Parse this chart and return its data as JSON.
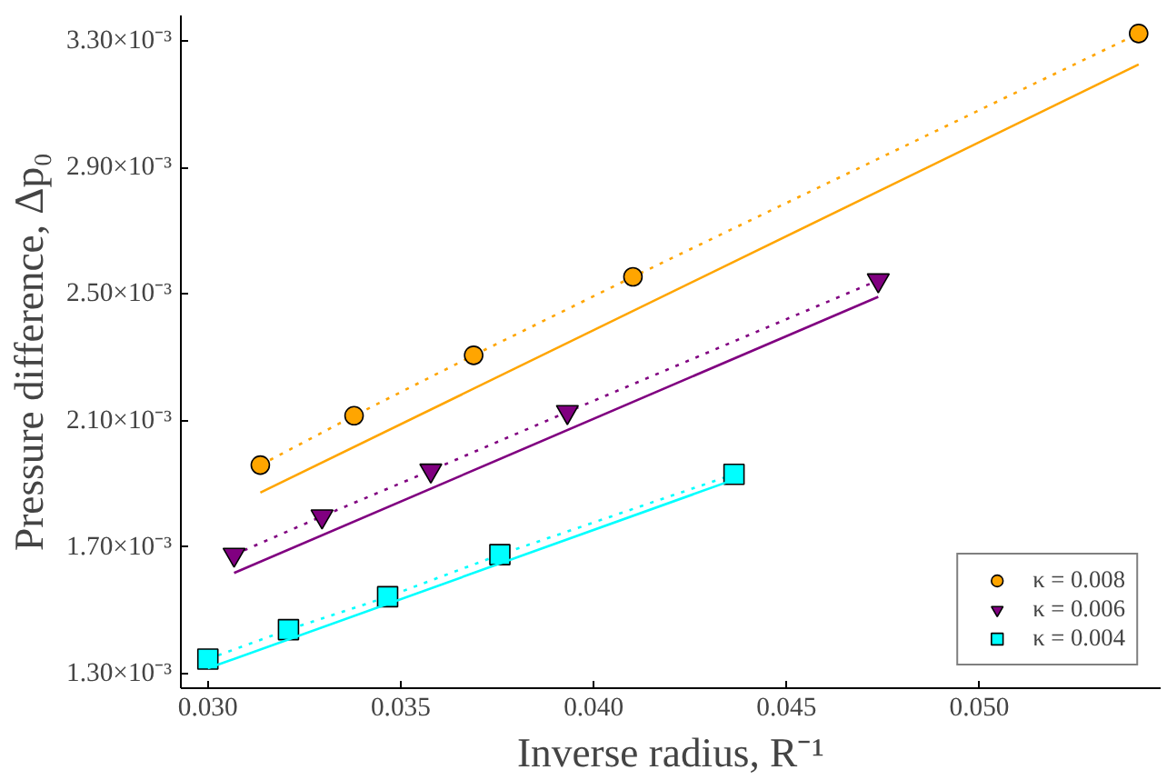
{
  "chart_data": {
    "type": "line",
    "xlabel": "Inverse radius, R⁻¹",
    "ylabel": "Pressure difference, Δp₀",
    "xlim": [
      0.0293,
      0.0547
    ],
    "ylim": [
      0.001254,
      0.00338
    ],
    "xticks": [
      {
        "value": 0.03,
        "label": "0.030"
      },
      {
        "value": 0.035,
        "label": "0.035"
      },
      {
        "value": 0.04,
        "label": "0.040"
      },
      {
        "value": 0.045,
        "label": "0.045"
      },
      {
        "value": 0.05,
        "label": "0.050"
      }
    ],
    "yticks": [
      {
        "value": 0.0013,
        "label": "1.30×10⁻³"
      },
      {
        "value": 0.0017,
        "label": "1.70×10⁻³"
      },
      {
        "value": 0.0021,
        "label": "2.10×10⁻³"
      },
      {
        "value": 0.0025,
        "label": "2.50×10⁻³"
      },
      {
        "value": 0.0029,
        "label": "2.90×10⁻³"
      },
      {
        "value": 0.0033,
        "label": "3.30×10⁻³"
      }
    ],
    "grid": false,
    "legend": "bottom right",
    "series": [
      {
        "name": "κ = 0.008",
        "color": "#ffa500",
        "marker": "circle",
        "line_style": "dotted",
        "x": [
          0.03136,
          0.03379,
          0.03689,
          0.04102,
          0.05413
        ],
        "values": [
          0.001959,
          0.002115,
          0.002306,
          0.002554,
          0.003323
        ]
      },
      {
        "name": "κ = 0.006",
        "color": "#800080",
        "marker": "triangle_down",
        "line_style": "dotted",
        "x": [
          0.03068,
          0.03296,
          0.03578,
          0.03932,
          0.04738
        ],
        "values": [
          0.001676,
          0.001797,
          0.001942,
          0.002127,
          0.002543
        ]
      },
      {
        "name": "κ = 0.004",
        "color": "#00ffff",
        "marker": "square",
        "line_style": "dotted",
        "x": [
          0.03,
          0.03209,
          0.03466,
          0.03757,
          0.04364
        ],
        "values": [
          0.001346,
          0.001439,
          0.001543,
          0.001676,
          0.00193
        ]
      },
      {
        "color": "#ffa500",
        "marker": "none",
        "line_style": "solid",
        "x": [
          0.03136,
          0.05413
        ],
        "values": [
          0.001872,
          0.003225
        ]
      },
      {
        "color": "#800080",
        "marker": "none",
        "line_style": "solid",
        "x": [
          0.03068,
          0.04738
        ],
        "values": [
          0.001618,
          0.002491
        ]
      },
      {
        "color": "#00ffff",
        "marker": "none",
        "line_style": "solid",
        "x": [
          0.03,
          0.04364
        ],
        "values": [
          0.001317,
          0.001913
        ]
      }
    ]
  }
}
